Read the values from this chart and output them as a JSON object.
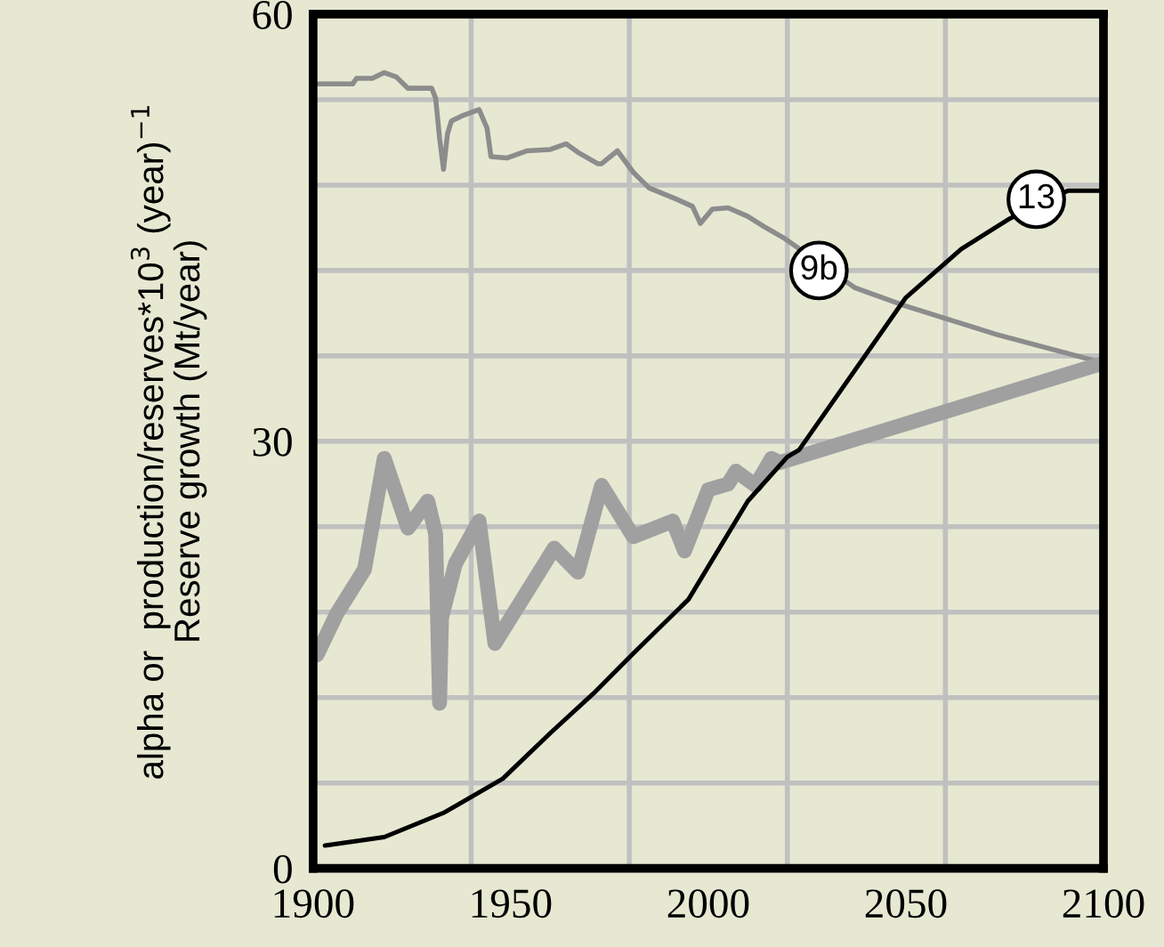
{
  "chart_data": {
    "type": "line",
    "ylabel": "alpha or  production/reserves*10$^{3}$ (year)$^{−1}$\nReserve growth (Mt/year)",
    "series": [
      {
        "color": "#8c8c8c",
        "x": [
          1900,
          1910,
          1911,
          1915,
          1918,
          1921,
          1924,
          1930,
          1931,
          1932,
          1933,
          1934,
          1935,
          1938,
          1942,
          1944,
          1945,
          1949,
          1954,
          1960,
          1964,
          1967,
          1972,
          1973,
          1977,
          1981,
          1985,
          1992,
          1996,
          1998,
          2001,
          2005,
          2010,
          2014,
          2019,
          2037,
          2050,
          2073,
          2100
        ],
        "values": [
          55.1,
          55.1,
          55.5,
          55.5,
          55.9,
          55.6,
          54.8,
          54.8,
          54.1,
          51.3,
          49.1,
          51.6,
          52.5,
          52.9,
          53.3,
          52.0,
          50.0,
          49.9,
          50.4,
          50.5,
          50.9,
          50.3,
          49.5,
          49.5,
          50.4,
          48.9,
          47.8,
          47.0,
          46.5,
          45.3,
          46.3,
          46.4,
          45.8,
          45.1,
          44.3,
          40.8,
          39.5,
          37.5,
          35.5
        ]
      },
      {
        "color": "#a0a0a0",
        "x": [
          1901,
          1906,
          1913,
          1918,
          1924,
          1929,
          1931,
          1932,
          1932.5,
          1936,
          1942,
          1946,
          1961,
          1967,
          1973,
          1981,
          1991,
          1994,
          2000,
          2005,
          2007,
          2012,
          2016,
          2018,
          2100
        ],
        "values": [
          15.0,
          17.9,
          21.0,
          28.8,
          23.9,
          25.8,
          23.5,
          11.6,
          17.6,
          21.4,
          24.4,
          15.8,
          22.5,
          20.8,
          26.9,
          23.3,
          24.4,
          22.3,
          26.6,
          27.0,
          27.9,
          26.9,
          28.8,
          28.5,
          35.5
        ]
      },
      {
        "color": "#000000",
        "x": [
          1903,
          1918,
          1933,
          1948,
          1960,
          1971,
          1981,
          1995,
          2010,
          2020,
          2023,
          2050,
          2064,
          2076,
          2091,
          2099
        ],
        "values": [
          1.6,
          2.2,
          3.9,
          6.3,
          9.5,
          12.3,
          15.1,
          18.9,
          25.8,
          28.9,
          29.4,
          40.1,
          43.5,
          45.6,
          47.6,
          47.6
        ]
      }
    ],
    "annotations": [
      {
        "text": "9b",
        "x": 2028,
        "y": 42
      },
      {
        "text": "13",
        "x": 2083,
        "y": 47
      }
    ],
    "xlim": [
      1900,
      2100
    ],
    "xticks": [
      1900,
      {
        "value": 1940,
        "label": null
      },
      1950,
      {
        "value": 1980,
        "label": null
      },
      2000,
      {
        "value": 2020,
        "label": null
      },
      2050,
      {
        "value": 2060,
        "label": null
      },
      2100
    ],
    "ylim": [
      0,
      60
    ],
    "yticks": [
      0,
      {
        "value": 6,
        "label": null
      },
      {
        "value": 12,
        "label": null
      },
      {
        "value": 18,
        "label": null
      },
      {
        "value": 24,
        "label": null
      },
      30,
      {
        "value": 36,
        "label": null
      },
      {
        "value": 42,
        "label": null
      },
      {
        "value": 48,
        "label": null
      },
      {
        "value": 54,
        "label": null
      },
      60
    ],
    "grid": true,
    "legend": false
  }
}
